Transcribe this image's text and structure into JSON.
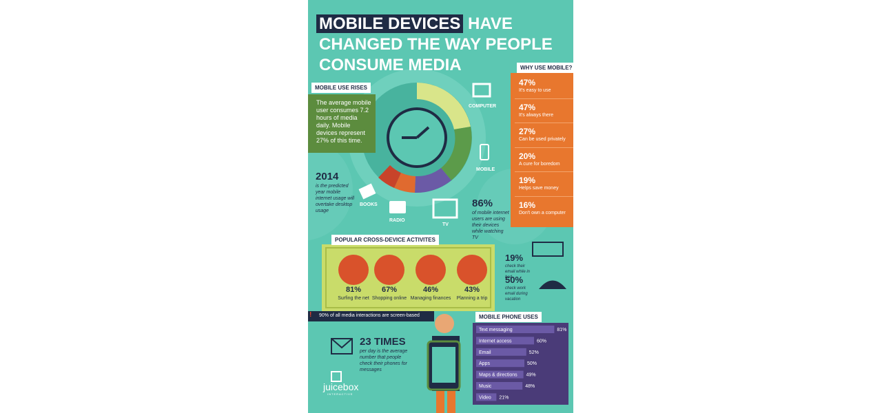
{
  "title": {
    "highlight": "MOBILE DEVICES",
    "rest": "HAVE",
    "line2": "CHANGED THE WAY PEOPLE",
    "line3": "CONSUME MEDIA"
  },
  "mobile_use_rises": {
    "tag": "MOBILE USE RISES",
    "text": "The average mobile user consumes 7.2 hours of media daily. Mobile devices represent 27% of this time."
  },
  "media_labels": {
    "computer": "COMPUTER",
    "mobile": "MOBILE",
    "tv": "TV",
    "radio": "RADIO",
    "books": "BOOKS"
  },
  "stat_2014": {
    "value": "2014",
    "text": "is the predicted year mobile internet usage will overtake desktop usage"
  },
  "stat_86": {
    "value": "86%",
    "text": "of mobile internet users are using their devices while watching TV"
  },
  "why": {
    "tag": "WHY USE MOBILE?",
    "items": [
      {
        "value": "47%",
        "label": "It's easy to use"
      },
      {
        "value": "47%",
        "label": "It's always there"
      },
      {
        "value": "27%",
        "label": "Can be used privately"
      },
      {
        "value": "20%",
        "label": "A cure for boredom"
      },
      {
        "value": "19%",
        "label": "Helps save money"
      },
      {
        "value": "16%",
        "label": "Don't own a computer"
      }
    ]
  },
  "activities": {
    "tag": "POPULAR CROSS-DEVICE ACTIVITES",
    "items": [
      {
        "value": "81%",
        "label": "Surfing the net"
      },
      {
        "value": "67%",
        "label": "Shopping online"
      },
      {
        "value": "46%",
        "label": "Managing finances"
      },
      {
        "value": "43%",
        "label": "Planning a trip"
      }
    ]
  },
  "email_stats": [
    {
      "value": "19%",
      "text": "check their email while in bed"
    },
    {
      "value": "50%",
      "text": "check work email during vacation"
    }
  ],
  "alert": {
    "icon": "!",
    "text": "90% of all media interactions are screen-based"
  },
  "times": {
    "value": "23 TIMES",
    "text": "per day is the average number that people check their phones for messages"
  },
  "uses": {
    "tag": "MOBILE PHONE USES",
    "items": [
      {
        "label": "Text messaging",
        "value": 81,
        "value_label": "81%"
      },
      {
        "label": "Internet access",
        "value": 60,
        "value_label": "60%"
      },
      {
        "label": "Email",
        "value": 52,
        "value_label": "52%"
      },
      {
        "label": "Apps",
        "value": 50,
        "value_label": "50%"
      },
      {
        "label": "Maps & directions",
        "value": 49,
        "value_label": "49%"
      },
      {
        "label": "Music",
        "value": 48,
        "value_label": "48%"
      },
      {
        "label": "Video",
        "value": 21,
        "value_label": "21%"
      }
    ]
  },
  "logo": {
    "name": "juicebox",
    "sub": "INTERACTIVE"
  }
}
